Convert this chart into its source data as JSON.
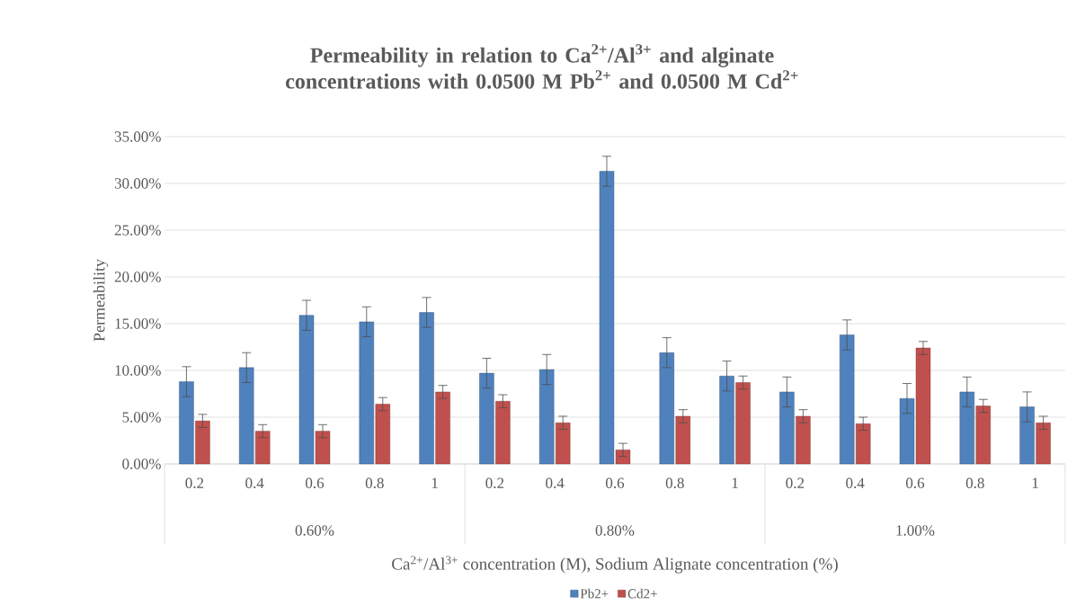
{
  "chart_data": {
    "type": "bar",
    "title": "Permeability in relation to Ca$^{2+}$/Al$^{3+}$ and alginate concentrations with 0.0500 M Pb$^{2+}$ and 0.0500 M Cd$^{2+}$",
    "xlabel": "Ca$^{2+}$/Al$^{3+}$ concentration (M), Sodium Alignate concentration (%)",
    "ylabel": "Permeability",
    "categories": [
      "0.2",
      "0.4",
      "0.6",
      "0.8",
      "1",
      "0.2",
      "0.4",
      "0.6",
      "0.8",
      "1",
      "0.2",
      "0.4",
      "0.6",
      "0.8",
      "1"
    ],
    "annotations": [
      "0.60%",
      "0.80%",
      "1.00%"
    ],
    "series": [
      {
        "name": "Pb2+",
        "color": "#4f81bd",
        "values": [
          8.8,
          10.3,
          15.9,
          15.2,
          16.2,
          9.7,
          10.1,
          31.3,
          11.9,
          9.4,
          7.7,
          13.8,
          7.0,
          7.7,
          6.1
        ],
        "errors": [
          1.6,
          1.6,
          1.6,
          1.6,
          1.6,
          1.6,
          1.6,
          1.6,
          1.6,
          1.6,
          1.6,
          1.6,
          1.6,
          1.6,
          1.6
        ]
      },
      {
        "name": "Cd2+",
        "color": "#c0504d",
        "values": [
          4.6,
          3.5,
          3.5,
          6.4,
          7.7,
          6.7,
          4.4,
          1.5,
          5.1,
          8.7,
          5.1,
          4.3,
          12.4,
          6.2,
          4.4
        ],
        "errors": [
          0.7,
          0.7,
          0.7,
          0.7,
          0.7,
          0.7,
          0.7,
          0.7,
          0.7,
          0.7,
          0.7,
          0.7,
          0.7,
          0.7,
          0.7
        ]
      }
    ],
    "ylim": [
      0,
      35
    ],
    "yticks": [
      {
        "value": 0,
        "label": "0.00%"
      },
      {
        "value": 5,
        "label": "5.00%"
      },
      {
        "value": 10,
        "label": "10.00%"
      },
      {
        "value": 15,
        "label": "15.00%"
      },
      {
        "value": 20,
        "label": "20.00%"
      },
      {
        "value": 25,
        "label": "25.00%"
      },
      {
        "value": 30,
        "label": "30.00%"
      },
      {
        "value": 35,
        "label": "35.00%"
      }
    ],
    "grid": "y",
    "legend": "bottom"
  }
}
